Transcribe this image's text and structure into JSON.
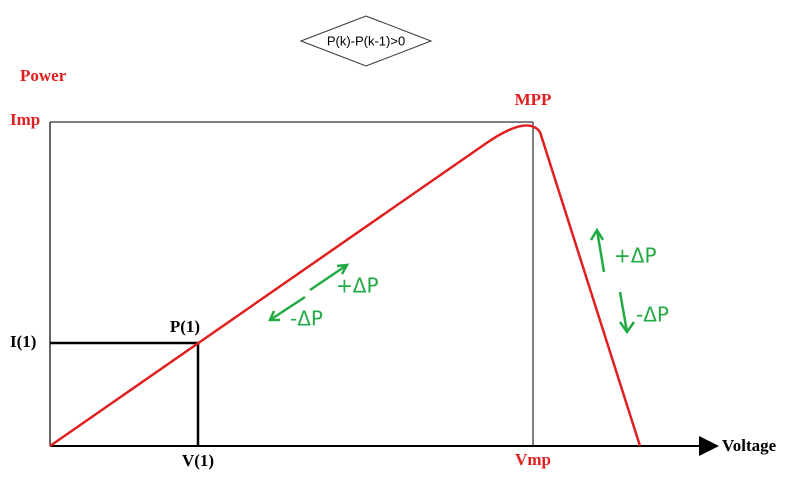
{
  "decision": {
    "label": "P(k)-P(k-1)>0"
  },
  "axes": {
    "y_label": "Power",
    "x_label": "Voltage"
  },
  "labels": {
    "imp": "Imp",
    "mpp": "MPP",
    "vmp": "Vmp",
    "i1": "I(1)",
    "p1": "P(1)",
    "v1": "V(1)"
  },
  "annotations": {
    "left_up": "+ΔP",
    "left_down": "-ΔP",
    "right_up": "+ΔP",
    "right_down": "-ΔP"
  }
}
